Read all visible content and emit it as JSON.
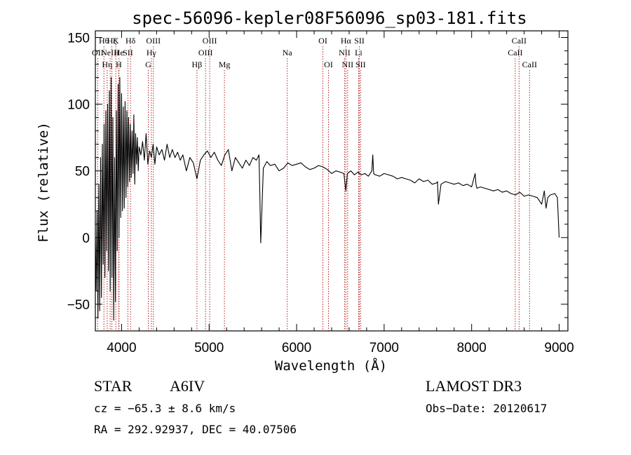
{
  "chart_data": {
    "type": "line",
    "title": "spec-56096-kepler08F56096_sp03-181.fits",
    "xlabel": "Wavelength (Å)",
    "ylabel": "Flux (relative)",
    "xlim": [
      3700,
      9100
    ],
    "ylim": [
      -70,
      155
    ],
    "xticks": [
      4000,
      5000,
      6000,
      7000,
      8000,
      9000
    ],
    "yticks": [
      -50,
      0,
      50,
      100,
      150
    ],
    "xtick_labels": [
      "4000",
      "5000",
      "6000",
      "7000",
      "8000",
      "9000"
    ],
    "ytick_labels": [
      "−50",
      "0",
      "50",
      "100",
      "150"
    ],
    "spectrum": {
      "x": [
        3700,
        3710,
        3720,
        3730,
        3740,
        3750,
        3760,
        3770,
        3780,
        3790,
        3800,
        3810,
        3820,
        3830,
        3840,
        3850,
        3860,
        3870,
        3880,
        3890,
        3900,
        3910,
        3920,
        3930,
        3940,
        3950,
        3960,
        3970,
        3980,
        3990,
        4000,
        4010,
        4020,
        4030,
        4040,
        4050,
        4060,
        4070,
        4080,
        4090,
        4100,
        4110,
        4120,
        4130,
        4140,
        4150,
        4160,
        4170,
        4180,
        4190,
        4200,
        4220,
        4240,
        4260,
        4280,
        4300,
        4320,
        4340,
        4360,
        4380,
        4400,
        4430,
        4460,
        4490,
        4520,
        4550,
        4580,
        4610,
        4640,
        4670,
        4700,
        4740,
        4780,
        4820,
        4861,
        4900,
        4940,
        4980,
        5020,
        5060,
        5100,
        5140,
        5180,
        5220,
        5260,
        5300,
        5340,
        5380,
        5420,
        5460,
        5500,
        5540,
        5570,
        5580,
        5590,
        5620,
        5660,
        5700,
        5750,
        5800,
        5850,
        5900,
        5950,
        6000,
        6050,
        6100,
        6150,
        6200,
        6250,
        6300,
        6350,
        6400,
        6450,
        6500,
        6540,
        6563,
        6580,
        6620,
        6660,
        6700,
        6740,
        6780,
        6820,
        6860,
        6870,
        6880,
        6900,
        6950,
        7000,
        7050,
        7100,
        7150,
        7200,
        7250,
        7300,
        7350,
        7400,
        7450,
        7500,
        7550,
        7600,
        7610,
        7620,
        7650,
        7700,
        7750,
        7800,
        7850,
        7900,
        7950,
        8000,
        8040,
        8050,
        8060,
        8100,
        8150,
        8200,
        8250,
        8300,
        8350,
        8400,
        8450,
        8500,
        8550,
        8600,
        8650,
        8700,
        8750,
        8800,
        8830,
        8850,
        8870,
        8900,
        8950,
        8980,
        9000
      ],
      "y": [
        0,
        -40,
        20,
        -60,
        40,
        -55,
        60,
        -45,
        70,
        -20,
        85,
        -30,
        95,
        -10,
        100,
        -25,
        110,
        -40,
        120,
        -30,
        90,
        -62,
        60,
        -48,
        95,
        -10,
        115,
        0,
        120,
        15,
        108,
        20,
        98,
        22,
        102,
        30,
        95,
        38,
        90,
        42,
        85,
        45,
        80,
        48,
        92,
        40,
        78,
        55,
        75,
        50,
        68,
        62,
        72,
        58,
        78,
        55,
        65,
        60,
        70,
        55,
        68,
        62,
        66,
        58,
        70,
        60,
        66,
        60,
        64,
        58,
        62,
        50,
        60,
        56,
        44,
        58,
        62,
        65,
        60,
        64,
        58,
        54,
        62,
        66,
        50,
        60,
        56,
        52,
        58,
        54,
        60,
        58,
        62,
        30,
        -4,
        52,
        57,
        54,
        55,
        50,
        52,
        56,
        54,
        55,
        56,
        53,
        51,
        52,
        54,
        53,
        51,
        48,
        50,
        49,
        48,
        35,
        48,
        50,
        47,
        49,
        47,
        48,
        46,
        50,
        62,
        48,
        47,
        46,
        48,
        47,
        46,
        44,
        45,
        44,
        43,
        41,
        44,
        42,
        43,
        40,
        41,
        42,
        25,
        40,
        42,
        41,
        40,
        41,
        39,
        40,
        38,
        48,
        40,
        37,
        38,
        37,
        36,
        35,
        36,
        34,
        35,
        33,
        32,
        34,
        31,
        32,
        31,
        30,
        25,
        35,
        22,
        30,
        32,
        33,
        30,
        0
      ]
    },
    "line_ids": [
      {
        "label": "OII",
        "x": 3727,
        "row": 1
      },
      {
        "label": "Hθ",
        "x": 3798,
        "row": 0
      },
      {
        "label": "Hη",
        "x": 3835,
        "row": 2
      },
      {
        "label": "NeIII",
        "x": 3869,
        "row": 1
      },
      {
        "label": "Hζ",
        "x": 3889,
        "row": 0
      },
      {
        "label": "He",
        "x": 3970,
        "row": 1
      },
      {
        "label": "K",
        "x": 3934,
        "row": 0
      },
      {
        "label": "H",
        "x": 3968,
        "row": 2
      },
      {
        "label": "Hδ",
        "x": 4102,
        "row": 0
      },
      {
        "label": "SII",
        "x": 4072,
        "row": 1
      },
      {
        "label": "OIII",
        "x": 4363,
        "row": 0
      },
      {
        "label": "Hγ",
        "x": 4340,
        "row": 1
      },
      {
        "label": "G",
        "x": 4305,
        "row": 2
      },
      {
        "label": "Hβ",
        "x": 4861,
        "row": 2
      },
      {
        "label": "OIII",
        "x": 5007,
        "row": 0
      },
      {
        "label": "OIII",
        "x": 4959,
        "row": 1
      },
      {
        "label": "Mg",
        "x": 5175,
        "row": 2
      },
      {
        "label": "Na",
        "x": 5893,
        "row": 1
      },
      {
        "label": "OI",
        "x": 6300,
        "row": 0
      },
      {
        "label": "OI",
        "x": 6364,
        "row": 2
      },
      {
        "label": "NII",
        "x": 6548,
        "row": 1
      },
      {
        "label": "Hα",
        "x": 6563,
        "row": 0
      },
      {
        "label": "NII",
        "x": 6583,
        "row": 2
      },
      {
        "label": "SII",
        "x": 6717,
        "row": 0
      },
      {
        "label": "Li",
        "x": 6708,
        "row": 1
      },
      {
        "label": "SII",
        "x": 6731,
        "row": 2
      },
      {
        "label": "CaII",
        "x": 8498,
        "row": 1
      },
      {
        "label": "CaII",
        "x": 8542,
        "row": 0
      },
      {
        "label": "CaII",
        "x": 8662,
        "row": 2
      }
    ],
    "colors": {
      "spectrum": "#000000",
      "lines": "#b22222",
      "axes": "#000000"
    }
  },
  "info": {
    "object_class": "STAR",
    "subclass": "A6IV",
    "survey": "LAMOST DR3",
    "cz": "cz = −65.3 ± 8.6 km/s",
    "obs_date": "Obs−Date: 20120617",
    "coords": "RA = 292.92937, DEC =  40.07506"
  }
}
